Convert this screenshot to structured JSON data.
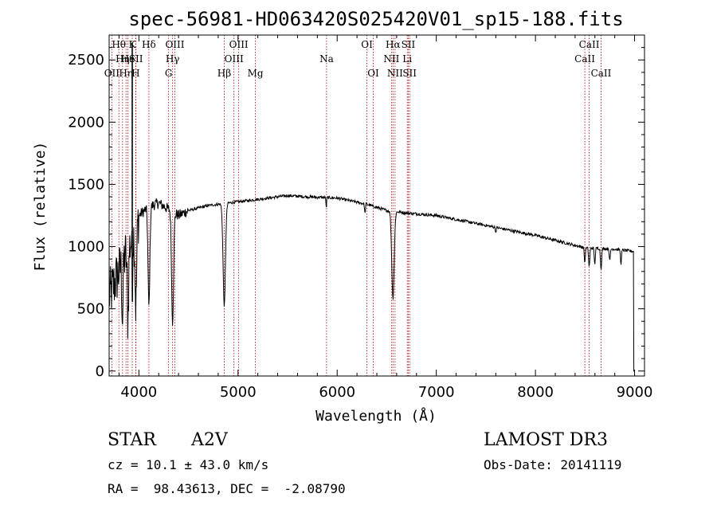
{
  "chart_data": {
    "type": "line",
    "title": "spec-56981-HD063420S025420V01_sp15-188.fits",
    "xlabel": "Wavelength (Å)",
    "ylabel": "Flux (relative)",
    "xlim": [
      3700,
      9100
    ],
    "ylim": [
      -40,
      2700
    ],
    "xticks": [
      4000,
      5000,
      6000,
      7000,
      8000,
      9000
    ],
    "yticks": [
      0,
      500,
      1000,
      1500,
      2000,
      2500
    ],
    "grid": false,
    "continuum": {
      "x": [
        3700,
        3750,
        3800,
        3850,
        3900,
        3950,
        4000,
        4100,
        4200,
        4300,
        4400,
        4500,
        4700,
        5000,
        5200,
        5500,
        5700,
        6000,
        6300,
        6500,
        6700,
        7000,
        7500,
        8000,
        8500,
        8800,
        9000
      ],
      "y": [
        600,
        700,
        800,
        900,
        1000,
        1100,
        1250,
        1320,
        1350,
        1300,
        1250,
        1290,
        1330,
        1360,
        1380,
        1410,
        1400,
        1390,
        1340,
        1290,
        1270,
        1250,
        1170,
        1090,
        990,
        980,
        960
      ]
    },
    "absorption_lines": [
      {
        "center": 3835,
        "depth": 450,
        "width": 6
      },
      {
        "center": 3889,
        "depth": 550,
        "width": 7
      },
      {
        "center": 3933,
        "depth": 500,
        "width": 3
      },
      {
        "center": 3970,
        "depth": 650,
        "width": 8
      },
      {
        "center": 4101,
        "depth": 800,
        "width": 9
      },
      {
        "center": 4340,
        "depth": 880,
        "width": 10
      },
      {
        "center": 4861,
        "depth": 820,
        "width": 12
      },
      {
        "center": 5890,
        "depth": 90,
        "width": 3
      },
      {
        "center": 6280,
        "depth": 80,
        "width": 4
      },
      {
        "center": 6563,
        "depth": 700,
        "width": 12
      },
      {
        "center": 7600,
        "depth": 40,
        "width": 4
      },
      {
        "center": 8498,
        "depth": 120,
        "width": 5
      },
      {
        "center": 8542,
        "depth": 150,
        "width": 6
      },
      {
        "center": 8598,
        "depth": 130,
        "width": 5
      },
      {
        "center": 8662,
        "depth": 160,
        "width": 6
      },
      {
        "center": 8750,
        "depth": 100,
        "width": 5
      },
      {
        "center": 8863,
        "depth": 110,
        "width": 5
      }
    ],
    "spikes": [
      {
        "x": 3933,
        "y": 2640
      }
    ],
    "spectral_lines": [
      {
        "x": 3727,
        "label": "OII",
        "row": 3
      },
      {
        "x": 3798,
        "label": "Hθ",
        "row": 1
      },
      {
        "x": 3835,
        "label": "Hη",
        "row": 2
      },
      {
        "x": 3870,
        "label": "Hη",
        "row": 3
      },
      {
        "x": 3889,
        "label": "He",
        "row": 2
      },
      {
        "x": 3933,
        "label": "K",
        "row": 1
      },
      {
        "x": 3968,
        "label": "H",
        "row": 3
      },
      {
        "x": 3970,
        "label": "SII",
        "row": 2
      },
      {
        "x": 4101,
        "label": "Hδ",
        "row": 1
      },
      {
        "x": 4300,
        "label": "G",
        "row": 3
      },
      {
        "x": 4340,
        "label": "Hγ",
        "row": 2
      },
      {
        "x": 4363,
        "label": "OIII",
        "row": 1
      },
      {
        "x": 4861,
        "label": "Hβ",
        "row": 3
      },
      {
        "x": 4959,
        "label": "OIII",
        "row": 2
      },
      {
        "x": 5007,
        "label": "OIII",
        "row": 1
      },
      {
        "x": 5175,
        "label": "Mg",
        "row": 3
      },
      {
        "x": 5893,
        "label": "Na",
        "row": 2
      },
      {
        "x": 6300,
        "label": "OI",
        "row": 1
      },
      {
        "x": 6364,
        "label": "OI",
        "row": 3
      },
      {
        "x": 6548,
        "label": "NII",
        "row": 2
      },
      {
        "x": 6563,
        "label": "Hα",
        "row": 1
      },
      {
        "x": 6584,
        "label": "NII",
        "row": 3
      },
      {
        "x": 6707,
        "label": "Li",
        "row": 2
      },
      {
        "x": 6717,
        "label": "SII",
        "row": 1
      },
      {
        "x": 6731,
        "label": "SII",
        "row": 3
      },
      {
        "x": 8498,
        "label": "CaII",
        "row": 2
      },
      {
        "x": 8542,
        "label": "CaII",
        "row": 1
      },
      {
        "x": 8662,
        "label": "CaII",
        "row": 3
      }
    ]
  },
  "info": {
    "class_label": "STAR",
    "subclass": "A2V",
    "survey": "LAMOST DR3",
    "cz": "cz = 10.1 ± 43.0 km/s",
    "obs_date": "Obs-Date: 20141119",
    "coords": "RA =  98.43613, DEC =  -2.08790"
  },
  "colors": {
    "line_marker": "#b00000",
    "spectrum": "#000000"
  }
}
